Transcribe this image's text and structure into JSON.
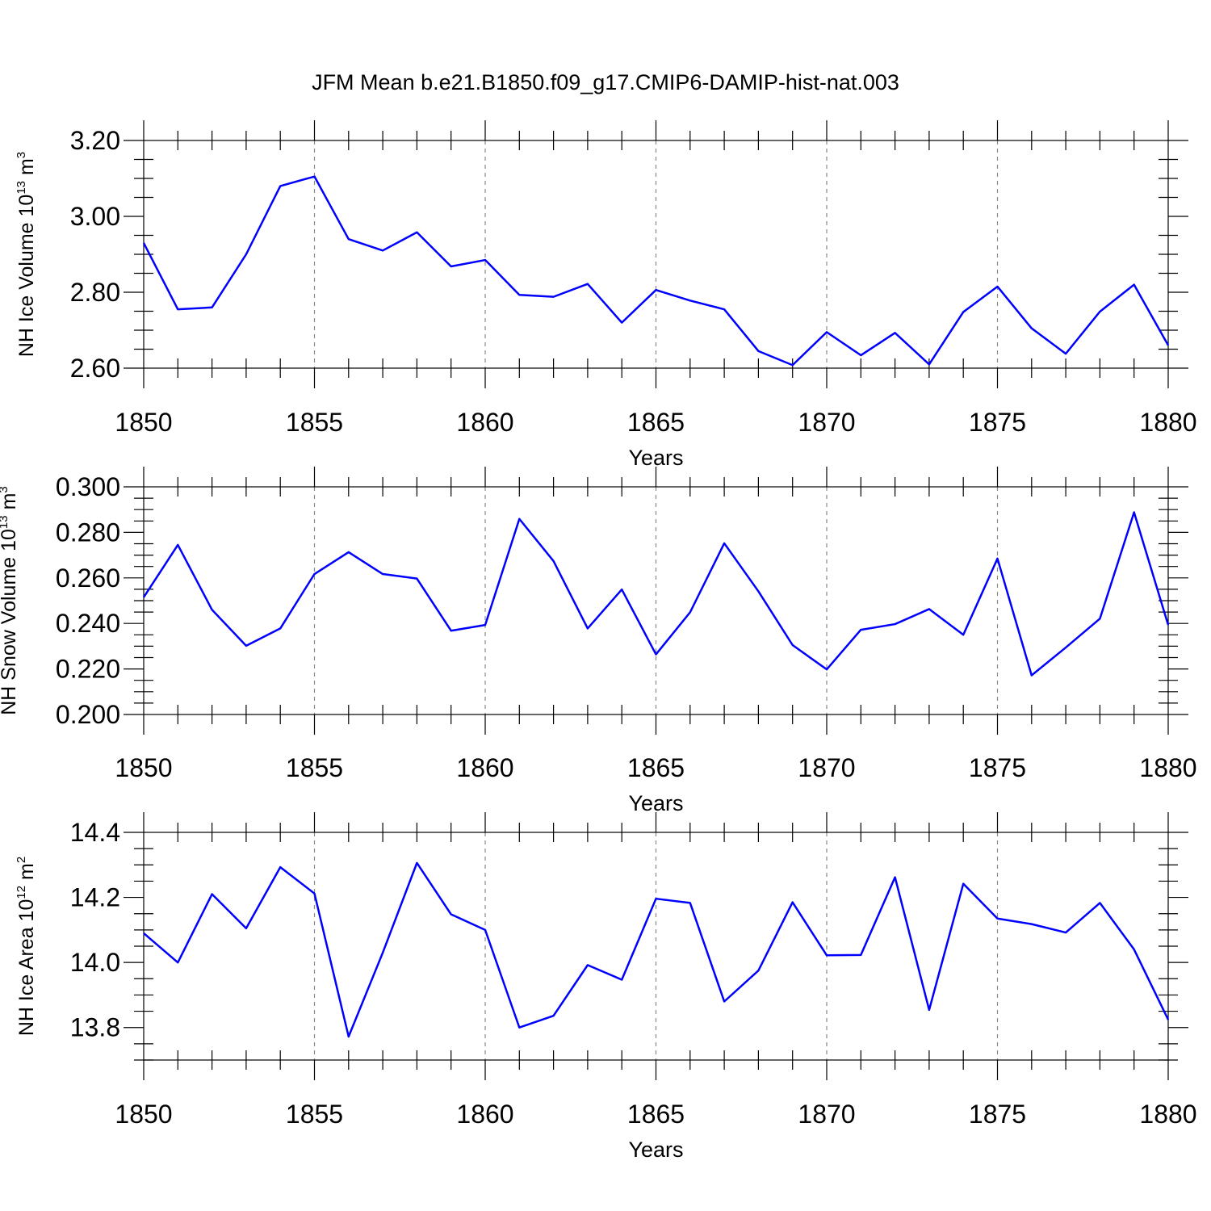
{
  "title": "JFM Mean b.e21.B1850.f09_g17.CMIP6-DAMIP-hist-nat.003",
  "line_color": "#0000ff",
  "chart_data": [
    {
      "type": "line",
      "xlabel": "Years",
      "ylabel": {
        "base": "NH Ice Volume 10",
        "exp": "13",
        "unit": " m",
        "unit_exp": "3"
      },
      "xlim": [
        1850,
        1880
      ],
      "ylim": [
        2.6,
        3.2
      ],
      "ytick_step": 0.2,
      "yminor_step": 0.05,
      "ydecimals": 2,
      "xticks": [
        1850,
        1855,
        1860,
        1865,
        1870,
        1875,
        1880
      ],
      "xtick_labels": [
        "1850",
        "1855",
        "1860",
        "1865",
        "1870",
        "1875",
        "1880"
      ],
      "ytick_labels": [
        "2.60",
        "2.80",
        "3.00",
        "3.20"
      ],
      "x": [
        1850,
        1851,
        1852,
        1853,
        1854,
        1855,
        1856,
        1857,
        1858,
        1859,
        1860,
        1861,
        1862,
        1863,
        1864,
        1865,
        1866,
        1867,
        1868,
        1869,
        1870,
        1871,
        1872,
        1873,
        1874,
        1875,
        1876,
        1877,
        1878,
        1879,
        1880
      ],
      "values": [
        2.93,
        2.755,
        2.76,
        2.9,
        3.08,
        3.105,
        2.94,
        2.91,
        2.958,
        2.868,
        2.885,
        2.793,
        2.788,
        2.822,
        2.72,
        2.806,
        2.778,
        2.755,
        2.645,
        2.608,
        2.695,
        2.634,
        2.693,
        2.61,
        2.748,
        2.815,
        2.705,
        2.638,
        2.749,
        2.82,
        2.66
      ]
    },
    {
      "type": "line",
      "xlabel": "Years",
      "ylabel": {
        "base": "NH Snow Volume 10",
        "exp": "13",
        "unit": " m",
        "unit_exp": "3"
      },
      "xlim": [
        1850,
        1880
      ],
      "ylim": [
        0.2,
        0.3
      ],
      "ytick_step": 0.02,
      "yminor_step": 0.005,
      "ydecimals": 3,
      "xticks": [
        1850,
        1855,
        1860,
        1865,
        1870,
        1875,
        1880
      ],
      "xtick_labels": [
        "1850",
        "1855",
        "1860",
        "1865",
        "1870",
        "1875",
        "1880"
      ],
      "ytick_labels": [
        "0.200",
        "0.220",
        "0.240",
        "0.260",
        "0.280",
        "0.300"
      ],
      "x": [
        1850,
        1851,
        1852,
        1853,
        1854,
        1855,
        1856,
        1857,
        1858,
        1859,
        1860,
        1861,
        1862,
        1863,
        1864,
        1865,
        1866,
        1867,
        1868,
        1869,
        1870,
        1871,
        1872,
        1873,
        1874,
        1875,
        1876,
        1877,
        1878,
        1879,
        1880
      ],
      "values": [
        0.2515,
        0.2745,
        0.246,
        0.2302,
        0.2378,
        0.2617,
        0.2713,
        0.2617,
        0.2597,
        0.2368,
        0.2393,
        0.2859,
        0.2674,
        0.2378,
        0.2549,
        0.2264,
        0.2449,
        0.2752,
        0.2541,
        0.2305,
        0.2198,
        0.2372,
        0.2397,
        0.2463,
        0.235,
        0.2685,
        0.2172,
        0.2294,
        0.2421,
        0.2888,
        0.2393
      ]
    },
    {
      "type": "line",
      "xlabel": "Years",
      "ylabel": {
        "base": "NH Ice Area 10",
        "exp": "12",
        "unit": " m",
        "unit_exp": "2"
      },
      "xlim": [
        1850,
        1880
      ],
      "ylim": [
        13.7,
        14.4
      ],
      "ytick_step": 0.2,
      "yminor_step": 0.05,
      "ydecimals": 1,
      "xticks": [
        1850,
        1855,
        1860,
        1865,
        1870,
        1875,
        1880
      ],
      "xtick_labels": [
        "1850",
        "1855",
        "1860",
        "1865",
        "1870",
        "1875",
        "1880"
      ],
      "ytick_labels": [
        "13.8",
        "14.0",
        "14.2",
        "14.4"
      ],
      "x": [
        1850,
        1851,
        1852,
        1853,
        1854,
        1855,
        1856,
        1857,
        1858,
        1859,
        1860,
        1861,
        1862,
        1863,
        1864,
        1865,
        1866,
        1867,
        1868,
        1869,
        1870,
        1871,
        1872,
        1873,
        1874,
        1875,
        1876,
        1877,
        1878,
        1879,
        1880
      ],
      "values": [
        14.09,
        14.0,
        14.21,
        14.105,
        14.293,
        14.212,
        13.772,
        14.03,
        14.306,
        14.148,
        14.1,
        13.8,
        13.836,
        13.992,
        13.947,
        14.196,
        14.183,
        13.88,
        13.975,
        14.185,
        14.022,
        14.023,
        14.262,
        13.854,
        14.242,
        14.135,
        14.118,
        14.092,
        14.183,
        14.04,
        13.824
      ]
    }
  ]
}
